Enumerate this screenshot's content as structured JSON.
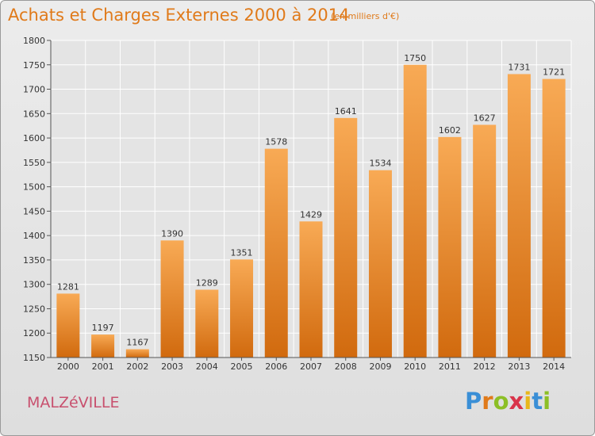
{
  "header": {
    "title": "Achats et Charges Externes 2000 à 2014",
    "subtitle": "(en milliers d'€)"
  },
  "footer": {
    "commune": "MALZéVILLE",
    "brand": "Proxiti"
  },
  "colors": {
    "bar_light": "#f7a550",
    "bar_dark": "#d36c10",
    "accent": "#e07a1a",
    "commune": "#c8506e"
  },
  "chart_data": {
    "type": "bar",
    "title": "Achats et Charges Externes 2000 à 2014",
    "subtitle": "(en milliers d'€)",
    "xlabel": "",
    "ylabel": "",
    "categories": [
      "2000",
      "2001",
      "2002",
      "2003",
      "2004",
      "2005",
      "2006",
      "2007",
      "2008",
      "2009",
      "2010",
      "2011",
      "2012",
      "2013",
      "2014"
    ],
    "values": [
      1281,
      1197,
      1167,
      1390,
      1289,
      1351,
      1578,
      1429,
      1641,
      1534,
      1750,
      1602,
      1627,
      1731,
      1721
    ],
    "ylim": [
      1150,
      1800
    ],
    "yticks": [
      1150,
      1200,
      1250,
      1300,
      1350,
      1400,
      1450,
      1500,
      1550,
      1600,
      1650,
      1700,
      1750,
      1800
    ],
    "grid": true,
    "legend": "none"
  }
}
